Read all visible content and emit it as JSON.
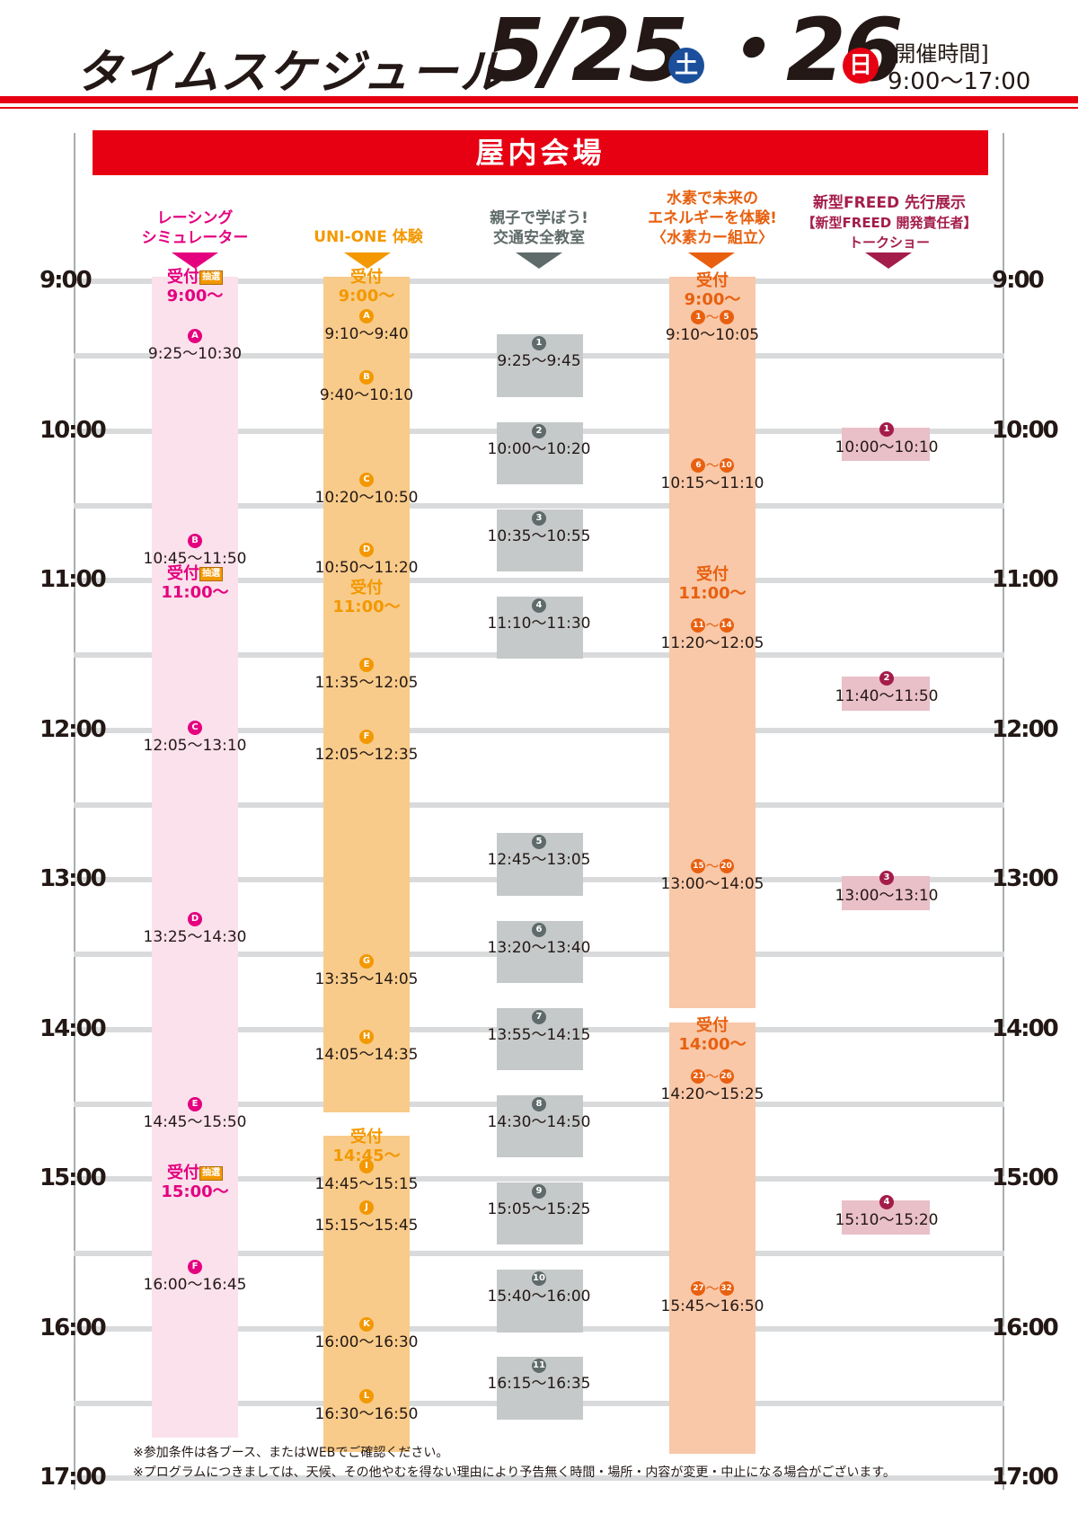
{
  "header": {
    "title": "タイムスケジュール",
    "date1": "5/25",
    "date1_day": "土",
    "date_sep": "・",
    "date2": "26",
    "date2_day": "日",
    "hours_label": "[開催時間]",
    "hours_value": "9:00〜17:00"
  },
  "venue": "屋内会場",
  "time_labels": [
    "9:00",
    "10:00",
    "11:00",
    "12:00",
    "13:00",
    "14:00",
    "15:00",
    "16:00",
    "17:00"
  ],
  "columns": {
    "race": {
      "title_1": "レーシング",
      "title_2": "シミュレーター"
    },
    "uni": {
      "title": "UNI-ONE 体験"
    },
    "kids": {
      "title_1": "親子で学ぼう!",
      "title_2": "交通安全教室"
    },
    "h2": {
      "title_1": "水素で未来の",
      "title_2": "エネルギーを体験!",
      "title_3": "〈水素カー組立〉"
    },
    "freed": {
      "title_1": "新型FREED 先行展示",
      "title_2": "新型FREED 開発責任者",
      "title_3": "トークショー"
    }
  },
  "reception_label": "受付",
  "lottery_label": "抽選",
  "race": {
    "receptions": [
      "9:00〜",
      "11:00〜",
      "15:00〜"
    ],
    "sessions": [
      {
        "mark": "A",
        "time": "9:25〜10:30"
      },
      {
        "mark": "B",
        "time": "10:45〜11:50"
      },
      {
        "mark": "C",
        "time": "12:05〜13:10"
      },
      {
        "mark": "D",
        "time": "13:25〜14:30"
      },
      {
        "mark": "E",
        "time": "14:45〜15:50"
      },
      {
        "mark": "F",
        "time": "16:00〜16:45"
      }
    ]
  },
  "uni": {
    "receptions": [
      "9:00〜",
      "11:00〜",
      "14:45〜"
    ],
    "sessions": [
      {
        "mark": "A",
        "time": "9:10〜9:40"
      },
      {
        "mark": "B",
        "time": "9:40〜10:10"
      },
      {
        "mark": "C",
        "time": "10:20〜10:50"
      },
      {
        "mark": "D",
        "time": "10:50〜11:20"
      },
      {
        "mark": "E",
        "time": "11:35〜12:05"
      },
      {
        "mark": "F",
        "time": "12:05〜12:35"
      },
      {
        "mark": "G",
        "time": "13:35〜14:05"
      },
      {
        "mark": "H",
        "time": "14:05〜14:35"
      },
      {
        "mark": "I",
        "time": "14:45〜15:15"
      },
      {
        "mark": "J",
        "time": "15:15〜15:45"
      },
      {
        "mark": "K",
        "time": "16:00〜16:30"
      },
      {
        "mark": "L",
        "time": "16:30〜16:50"
      }
    ]
  },
  "kids": {
    "sessions": [
      {
        "mark": "1",
        "time": "9:25〜9:45"
      },
      {
        "mark": "2",
        "time": "10:00〜10:20"
      },
      {
        "mark": "3",
        "time": "10:35〜10:55"
      },
      {
        "mark": "4",
        "time": "11:10〜11:30"
      },
      {
        "mark": "5",
        "time": "12:45〜13:05"
      },
      {
        "mark": "6",
        "time": "13:20〜13:40"
      },
      {
        "mark": "7",
        "time": "13:55〜14:15"
      },
      {
        "mark": "8",
        "time": "14:30〜14:50"
      },
      {
        "mark": "9",
        "time": "15:05〜15:25"
      },
      {
        "mark": "10",
        "time": "15:40〜16:00"
      },
      {
        "mark": "11",
        "time": "16:15〜16:35"
      }
    ]
  },
  "h2": {
    "receptions": [
      "9:00〜",
      "11:00〜",
      "14:00〜"
    ],
    "sessions": [
      {
        "from": "1",
        "to": "5",
        "time": "9:10〜10:05"
      },
      {
        "from": "6",
        "to": "10",
        "time": "10:15〜11:10"
      },
      {
        "from": "11",
        "to": "14",
        "time": "11:20〜12:05"
      },
      {
        "from": "15",
        "to": "20",
        "time": "13:00〜14:05"
      },
      {
        "from": "21",
        "to": "26",
        "time": "14:20〜15:25"
      },
      {
        "from": "27",
        "to": "32",
        "time": "15:45〜16:50"
      }
    ],
    "range_sep": "〜"
  },
  "freed": {
    "sessions": [
      {
        "mark": "1",
        "time": "10:00〜10:10"
      },
      {
        "mark": "2",
        "time": "11:40〜11:50"
      },
      {
        "mark": "3",
        "time": "13:00〜13:10"
      },
      {
        "mark": "4",
        "time": "15:10〜15:20"
      }
    ]
  },
  "notes": [
    "※参加条件は各ブース、またはWEBでご確認ください。",
    "※プログラムにつきましては、天候、その他やむを得ない理由により予告無く時間・場所・内容が変更・中止になる場合がございます。"
  ],
  "colors": {
    "accent_red": "#e60012",
    "race": "#e4007f",
    "uni": "#f39800",
    "kids": "#5f6b6a",
    "h2": "#e8600f",
    "freed": "#a41d4a"
  }
}
